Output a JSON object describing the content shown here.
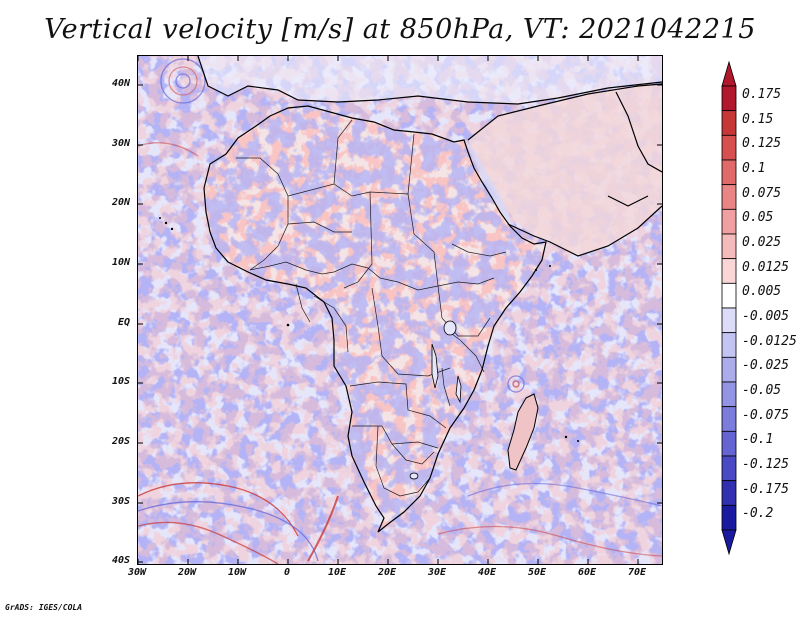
{
  "title": "Vertical velocity [m/s] at 850hPa, VT: 2021042215",
  "credit": "GrADS: IGES/COLA",
  "axes": {
    "lat_labels": [
      "40N",
      "30N",
      "20N",
      "10N",
      "EQ",
      "10S",
      "20S",
      "30S",
      "40S"
    ],
    "lon_labels": [
      "30W",
      "20W",
      "10W",
      "0",
      "10E",
      "20E",
      "30E",
      "40E",
      "50E",
      "60E",
      "70E"
    ]
  },
  "colorbar": {
    "levels": [
      "0.175",
      "0.15",
      "0.125",
      "0.1",
      "0.075",
      "0.05",
      "0.025",
      "0.0125",
      "0.005",
      "-0.005",
      "-0.0125",
      "-0.025",
      "-0.05",
      "-0.075",
      "-0.1",
      "-0.125",
      "-0.175",
      "-0.2"
    ],
    "colors": [
      "#b2182b",
      "#c63838",
      "#d65050",
      "#e06a6a",
      "#e98585",
      "#f0a0a0",
      "#f5bbbb",
      "#fad6d6",
      "#ffffff",
      "#dcdcf8",
      "#c4c4f2",
      "#acacec",
      "#9494e4",
      "#7c7cdc",
      "#6464d2",
      "#4a4ac4",
      "#3030b0",
      "#1a1aa0"
    ]
  },
  "colors": {
    "field_positive": "#d94d4d",
    "field_negative": "#5b5be0",
    "coastline": "#000000"
  }
}
